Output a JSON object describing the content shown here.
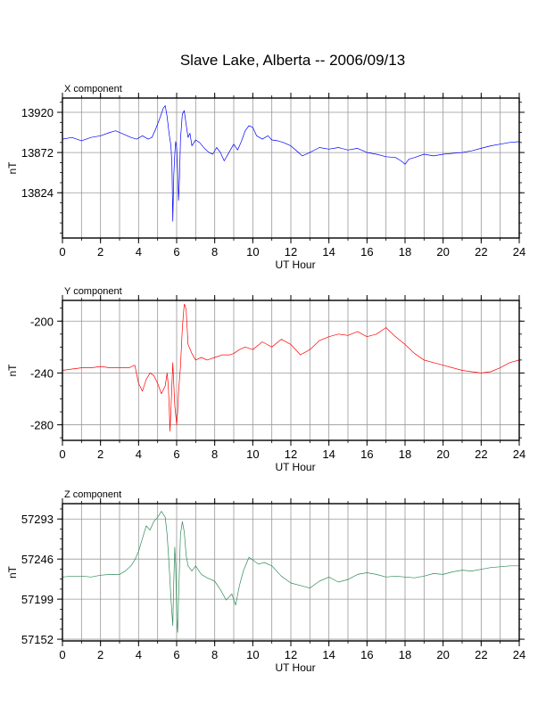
{
  "page_title": "Slave Lake, Alberta -- 2006/09/13",
  "chart_data": [
    {
      "type": "line",
      "panel_title": "X component",
      "xlabel": "UT Hour",
      "ylabel": "nT",
      "xlim": [
        0,
        24
      ],
      "ylim": [
        13770,
        13937
      ],
      "xticks": [
        0,
        2,
        4,
        6,
        8,
        10,
        12,
        14,
        16,
        18,
        20,
        22,
        24
      ],
      "yticks": [
        13824,
        13872,
        13920
      ],
      "grid": true,
      "color": "#0000ff",
      "series": [
        {
          "x": [
            0,
            0.5,
            1,
            1.5,
            2,
            2.5,
            2.8,
            3.2,
            3.6,
            3.9,
            4.2,
            4.5,
            4.7,
            4.9,
            5.1,
            5.3,
            5.4,
            5.5,
            5.6,
            5.7,
            5.75,
            5.8,
            5.85,
            5.9,
            5.95,
            6.0,
            6.05,
            6.1,
            6.15,
            6.2,
            6.3,
            6.4,
            6.5,
            6.6,
            6.7,
            6.8,
            7.0,
            7.2,
            7.5,
            7.7,
            7.9,
            8.1,
            8.3,
            8.5,
            8.8,
            9.0,
            9.2,
            9.4,
            9.6,
            9.8,
            10.0,
            10.2,
            10.5,
            10.8,
            11.0,
            11.3,
            11.6,
            12.0,
            12.3,
            12.6,
            13.0,
            13.5,
            14.0,
            14.5,
            15.0,
            15.5,
            16.0,
            16.5,
            17.0,
            17.5,
            17.8,
            18.0,
            18.2,
            18.5,
            19.0,
            19.5,
            20.0,
            20.5,
            21.0,
            21.5,
            22.0,
            22.5,
            23.0,
            23.5,
            24.0
          ],
          "y": [
            13888,
            13890,
            13886,
            13890,
            13892,
            13896,
            13898,
            13894,
            13890,
            13888,
            13892,
            13888,
            13890,
            13900,
            13912,
            13925,
            13928,
            13915,
            13895,
            13880,
            13858,
            13790,
            13845,
            13870,
            13885,
            13878,
            13852,
            13815,
            13842,
            13888,
            13918,
            13922,
            13905,
            13890,
            13895,
            13880,
            13887,
            13884,
            13876,
            13872,
            13870,
            13878,
            13872,
            13862,
            13874,
            13882,
            13875,
            13885,
            13898,
            13904,
            13902,
            13892,
            13888,
            13892,
            13887,
            13886,
            13884,
            13880,
            13874,
            13868,
            13872,
            13878,
            13876,
            13878,
            13875,
            13877,
            13872,
            13870,
            13867,
            13866,
            13862,
            13858,
            13864,
            13866,
            13870,
            13868,
            13870,
            13871,
            13872,
            13874,
            13877,
            13880,
            13882,
            13884,
            13885
          ]
        }
      ]
    },
    {
      "type": "line",
      "panel_title": "Y component",
      "xlabel": "UT Hour",
      "ylabel": "nT",
      "xlim": [
        0,
        24
      ],
      "ylim": [
        -292,
        -184
      ],
      "xticks": [
        0,
        2,
        4,
        6,
        8,
        10,
        12,
        14,
        16,
        18,
        20,
        22,
        24
      ],
      "yticks": [
        -280,
        -240,
        -200
      ],
      "grid": true,
      "color": "#ff0000",
      "series": [
        {
          "x": [
            0,
            0.5,
            1,
            1.5,
            2,
            2.5,
            3,
            3.5,
            3.8,
            4.0,
            4.2,
            4.4,
            4.6,
            4.8,
            5.0,
            5.2,
            5.4,
            5.5,
            5.55,
            5.6,
            5.65,
            5.7,
            5.8,
            5.9,
            6.0,
            6.05,
            6.1,
            6.2,
            6.3,
            6.4,
            6.45,
            6.5,
            6.6,
            6.8,
            7.0,
            7.3,
            7.6,
            8.0,
            8.4,
            8.8,
            9.0,
            9.3,
            9.6,
            10.0,
            10.5,
            11.0,
            11.5,
            12.0,
            12.5,
            13.0,
            13.5,
            14.0,
            14.5,
            15.0,
            15.5,
            16.0,
            16.5,
            17.0,
            17.5,
            18.0,
            18.5,
            19.0,
            19.5,
            20.0,
            20.5,
            21.0,
            21.5,
            22.0,
            22.5,
            23.0,
            23.5,
            24.0
          ],
          "y": [
            -238,
            -237,
            -236,
            -236,
            -235,
            -236,
            -236,
            -236,
            -234,
            -248,
            -254,
            -245,
            -240,
            -242,
            -248,
            -256,
            -250,
            -240,
            -248,
            -262,
            -285,
            -268,
            -232,
            -265,
            -280,
            -270,
            -255,
            -235,
            -205,
            -187,
            -188,
            -192,
            -218,
            -225,
            -230,
            -228,
            -230,
            -228,
            -226,
            -226,
            -225,
            -222,
            -220,
            -222,
            -216,
            -220,
            -214,
            -218,
            -226,
            -222,
            -215,
            -212,
            -210,
            -211,
            -208,
            -212,
            -210,
            -205,
            -212,
            -218,
            -225,
            -230,
            -232,
            -234,
            -236,
            -238,
            -239,
            -240,
            -239,
            -236,
            -232,
            -230
          ]
        }
      ]
    },
    {
      "type": "line",
      "panel_title": "Z component",
      "xlabel": "UT Hour",
      "ylabel": "nT",
      "xlim": [
        0,
        24
      ],
      "ylim": [
        57150,
        57311
      ],
      "xticks": [
        0,
        2,
        4,
        6,
        8,
        10,
        12,
        14,
        16,
        18,
        20,
        22,
        24
      ],
      "yticks": [
        57152,
        57199,
        57246,
        57293
      ],
      "grid": true,
      "color": "#2e8b57",
      "series": [
        {
          "x": [
            0,
            0.5,
            1,
            1.5,
            2,
            2.5,
            3,
            3.3,
            3.6,
            3.8,
            4.0,
            4.2,
            4.4,
            4.6,
            4.8,
            5.0,
            5.2,
            5.4,
            5.5,
            5.6,
            5.7,
            5.8,
            5.85,
            5.9,
            5.95,
            6.0,
            6.05,
            6.1,
            6.2,
            6.3,
            6.4,
            6.5,
            6.6,
            6.8,
            7.0,
            7.3,
            7.6,
            8.0,
            8.3,
            8.6,
            8.9,
            9.1,
            9.3,
            9.5,
            9.8,
            10.0,
            10.3,
            10.6,
            11.0,
            11.5,
            12.0,
            12.5,
            13.0,
            13.5,
            14.0,
            14.5,
            15.0,
            15.5,
            16.0,
            16.5,
            17.0,
            17.5,
            18.0,
            18.5,
            19.0,
            19.5,
            20.0,
            20.5,
            21.0,
            21.5,
            22.0,
            22.5,
            23.0,
            23.5,
            24.0
          ],
          "y": [
            57225,
            57226,
            57226,
            57225,
            57227,
            57228,
            57228,
            57232,
            57238,
            57245,
            57255,
            57270,
            57285,
            57280,
            57290,
            57295,
            57302,
            57295,
            57275,
            57240,
            57200,
            57168,
            57220,
            57260,
            57240,
            57180,
            57160,
            57200,
            57275,
            57290,
            57278,
            57250,
            57238,
            57232,
            57238,
            57228,
            57224,
            57220,
            57210,
            57198,
            57205,
            57192,
            57215,
            57232,
            57248,
            57245,
            57240,
            57242,
            57238,
            57226,
            57218,
            57215,
            57212,
            57220,
            57225,
            57219,
            57222,
            57228,
            57230,
            57228,
            57225,
            57226,
            57225,
            57224,
            57226,
            57229,
            57228,
            57231,
            57233,
            57232,
            57234,
            57236,
            57237,
            57238,
            57238
          ]
        }
      ]
    }
  ]
}
